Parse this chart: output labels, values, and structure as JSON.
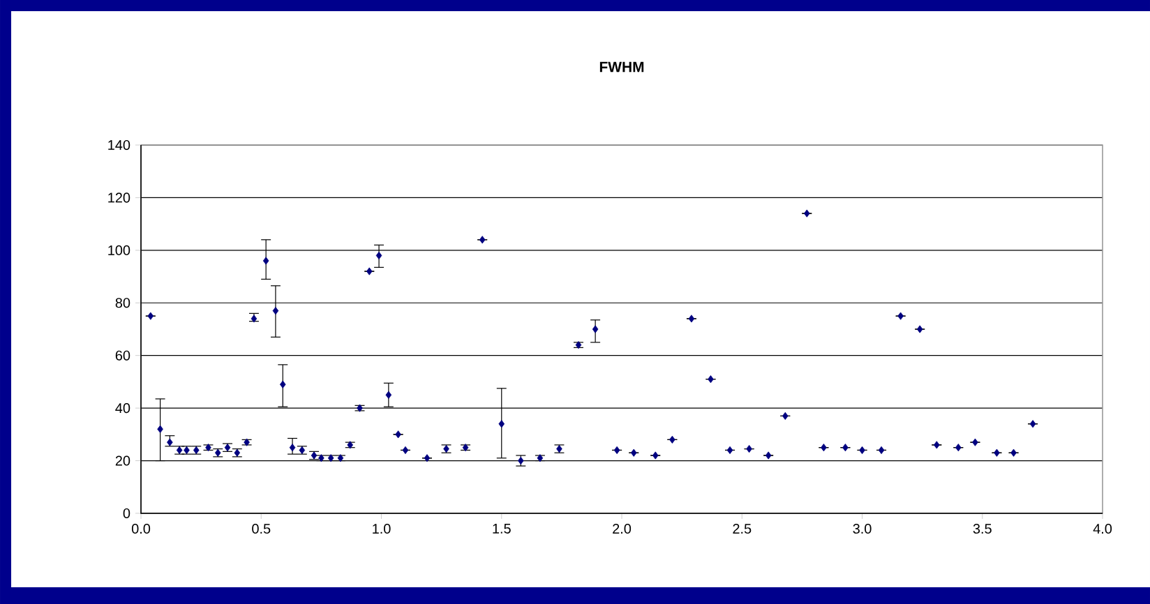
{
  "chart_data": {
    "type": "scatter",
    "title": "FWHM",
    "xlim": [
      0,
      4
    ],
    "xticks": [
      {
        "value": 0,
        "label": "0.0"
      },
      {
        "value": 0.5,
        "label": "0.5"
      },
      {
        "value": 1,
        "label": "1.0"
      },
      {
        "value": 1.5,
        "label": "1.5"
      },
      {
        "value": 2,
        "label": "2.0"
      },
      {
        "value": 2.5,
        "label": "2.5"
      },
      {
        "value": 3,
        "label": "3.0"
      },
      {
        "value": 3.5,
        "label": "3.5"
      },
      {
        "value": 4,
        "label": "4.0"
      }
    ],
    "ylim": [
      0,
      140
    ],
    "yticks": [
      0,
      20,
      40,
      60,
      80,
      100,
      120,
      140
    ],
    "grid": "y",
    "marker": "diamond",
    "legend": false,
    "series": [
      {
        "color": "#000080",
        "x": [
          0.04,
          0.08,
          0.12,
          0.16,
          0.19,
          0.23,
          0.28,
          0.32,
          0.36,
          0.4,
          0.44,
          0.47,
          0.52,
          0.56,
          0.59,
          0.63,
          0.67,
          0.72,
          0.75,
          0.79,
          0.83,
          0.87,
          0.91,
          0.95,
          0.99,
          1.03,
          1.07,
          1.1,
          1.19,
          1.27,
          1.35,
          1.42,
          1.5,
          1.58,
          1.66,
          1.74,
          1.82,
          1.89,
          1.98,
          2.05,
          2.14,
          2.21,
          2.29,
          2.37,
          2.45,
          2.53,
          2.61,
          2.68,
          2.77,
          2.84,
          2.93,
          3.0,
          3.08,
          3.16,
          3.24,
          3.31,
          3.4,
          3.47,
          3.56,
          3.63,
          3.71
        ],
        "values": [
          75,
          32,
          27,
          24,
          24,
          24,
          25,
          23,
          25,
          23,
          27,
          74,
          96,
          77,
          49,
          25,
          24,
          22,
          21,
          21,
          21,
          26,
          40,
          92,
          98,
          45,
          30,
          24,
          21,
          24.5,
          25,
          104,
          34,
          20,
          21,
          24.5,
          64,
          70,
          24,
          23,
          22,
          28,
          74,
          51,
          24,
          24.5,
          22,
          37,
          114,
          25,
          25,
          24,
          24,
          75,
          70,
          26,
          25,
          27,
          23,
          23,
          34
        ],
        "errors": [
          null,
          [
            20,
            43.5
          ],
          [
            25.5,
            29.5
          ],
          1.5,
          1.5,
          1.5,
          1,
          1.5,
          1.5,
          1.5,
          1,
          [
            73,
            76
          ],
          [
            89,
            104
          ],
          [
            67,
            86.5
          ],
          [
            40.5,
            56.5
          ],
          [
            22.5,
            28.5
          ],
          1.5,
          1.5,
          1,
          1,
          1,
          1,
          1,
          null,
          [
            93.5,
            102
          ],
          [
            40.5,
            49.5
          ],
          null,
          null,
          null,
          1.5,
          1,
          null,
          [
            21,
            47.5
          ],
          2,
          1,
          1.5,
          1,
          [
            65,
            73.5
          ],
          null,
          null,
          null,
          null,
          null,
          null,
          null,
          null,
          null,
          null,
          null,
          null,
          null,
          null,
          null,
          null,
          null,
          null,
          null,
          null,
          null,
          null,
          null
        ]
      }
    ]
  }
}
